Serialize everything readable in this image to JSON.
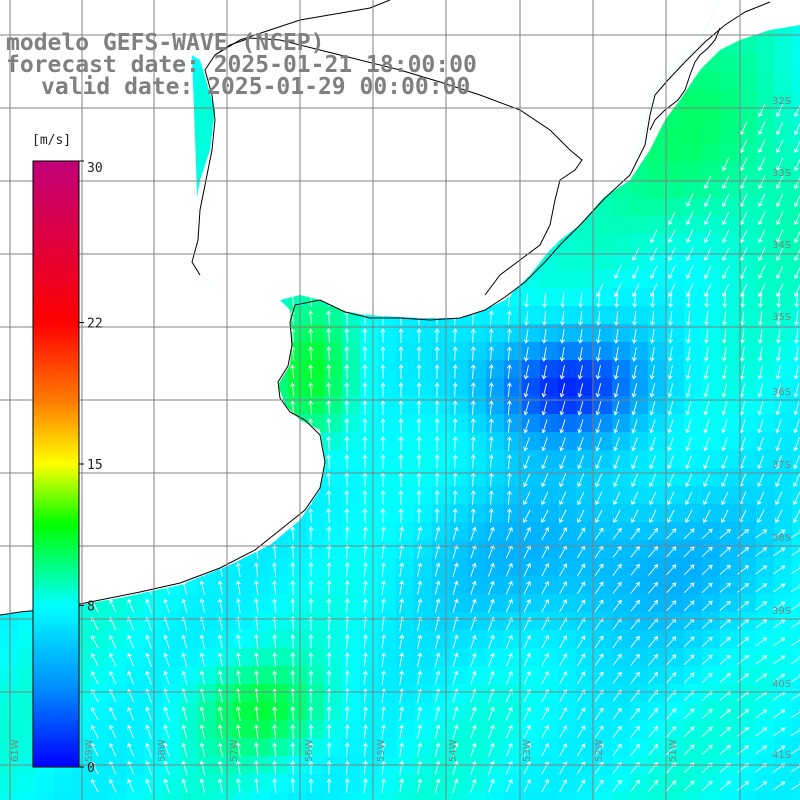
{
  "title": {
    "line1": "modelo GEFS-WAVE (NCEP)",
    "line2": "forecast date: 2025-01-21 18:00:00",
    "line3": "valid date: 2025-01-29 00:00:00"
  },
  "colorbar": {
    "unit": "[m/s]",
    "ticks": [
      "30",
      "22",
      "15",
      "8",
      "0"
    ],
    "tick_values": [
      30,
      22,
      15,
      8,
      0
    ],
    "min": 0,
    "max": 30,
    "stops": [
      {
        "v": 0,
        "c": "#0000ff"
      },
      {
        "v": 4,
        "c": "#0090ff"
      },
      {
        "v": 8,
        "c": "#00ffff"
      },
      {
        "v": 12,
        "c": "#00ff00"
      },
      {
        "v": 15,
        "c": "#ffff00"
      },
      {
        "v": 18,
        "c": "#ff8000"
      },
      {
        "v": 22,
        "c": "#ff0000"
      },
      {
        "v": 30,
        "c": "#c0007a"
      }
    ]
  },
  "grid": {
    "lon_labels": [
      "61W",
      "59W",
      "58W",
      "57W",
      "56W",
      "55W",
      "54W",
      "53W",
      "52W",
      "51W"
    ],
    "lat_labels": [
      "32S",
      "33S",
      "34S",
      "35S",
      "36S",
      "37S",
      "38S",
      "39S",
      "40S",
      "41S"
    ]
  },
  "colors": {
    "land": "#ffffff",
    "coastline": "#000000",
    "gridline": "#808080",
    "arrow": "#ffffff",
    "title": "#808080"
  }
}
